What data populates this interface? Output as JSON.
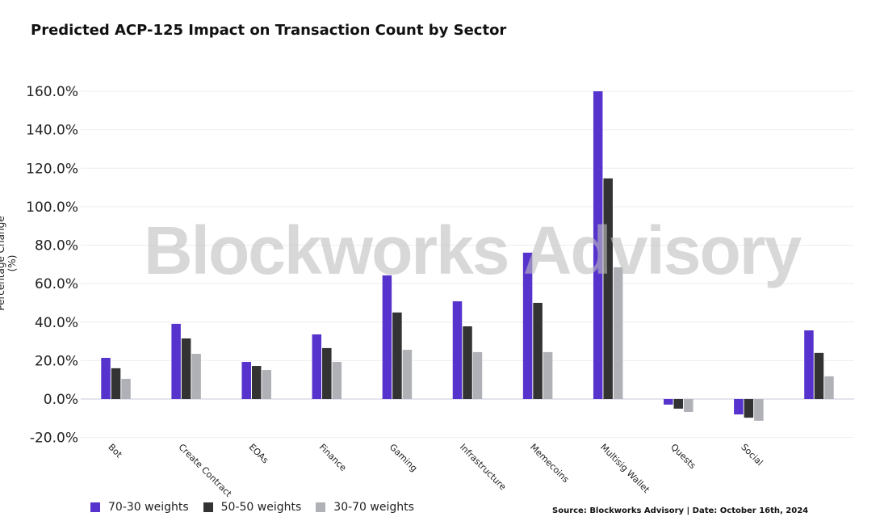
{
  "chart_data": {
    "type": "bar",
    "title": "Predicted ACP-125 Impact on Transaction Count by Sector",
    "xlabel": "",
    "ylabel": "Percentage Change (%)",
    "ylim": [
      -20,
      160
    ],
    "yticks": [
      "-20.0%",
      "0.0%",
      "20.0%",
      "40.0%",
      "60.0%",
      "80.0%",
      "100.0%",
      "120.0%",
      "140.0%",
      "160.0%"
    ],
    "ytick_values": [
      -20,
      0,
      20,
      40,
      60,
      80,
      100,
      120,
      140,
      160
    ],
    "grid": true,
    "legend_position": "bottom-left",
    "categories": [
      "Bot",
      "Create Contract",
      "EOAs",
      "Finance",
      "Gaming",
      "Infrastructure",
      "Memecoins",
      "Multisig Wallet",
      "Quests",
      "Social",
      ""
    ],
    "series": [
      {
        "name": "70-30 weights",
        "color": "#5533cc",
        "values": [
          21.4,
          39.1,
          19.3,
          33.6,
          64.3,
          50.8,
          76.1,
          160.0,
          -2.9,
          -8.0,
          35.7
        ]
      },
      {
        "name": "50-50 weights",
        "color": "#333333",
        "values": [
          16.0,
          31.5,
          17.2,
          26.5,
          45.0,
          37.8,
          50.0,
          114.7,
          -5.0,
          -9.7,
          24.0
        ]
      },
      {
        "name": "30-70 weights",
        "color": "#b0b1b6",
        "values": [
          10.5,
          23.5,
          15.1,
          19.3,
          25.6,
          24.4,
          24.4,
          68.5,
          -6.7,
          -11.3,
          11.8
        ]
      }
    ]
  },
  "watermark": "Blockworks Advisory",
  "source": "Source: Blockworks Advisory | Date: October 16th, 2024"
}
